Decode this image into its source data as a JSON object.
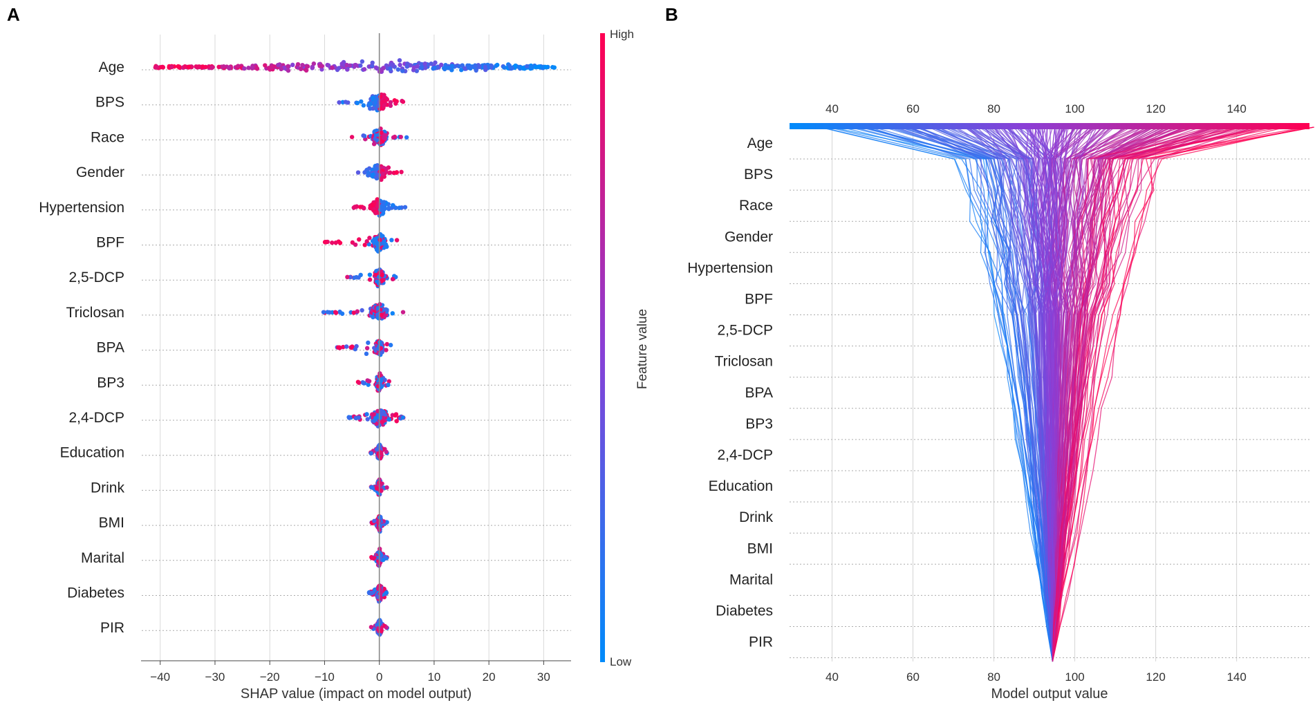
{
  "chart_data": [
    {
      "panel_label": "A",
      "type": "scatter",
      "subtype": "shap-beeswarm",
      "xlabel": "SHAP value (impact on model output)",
      "x_ticks": [
        "−40",
        "−30",
        "−20",
        "−10",
        "0",
        "10",
        "20",
        "30"
      ],
      "x_tick_values": [
        -40,
        -30,
        -20,
        -10,
        0,
        10,
        20,
        30
      ],
      "xlim": [
        -43.5,
        35
      ],
      "features": [
        "Age",
        "BPS",
        "Race",
        "Gender",
        "Hypertension",
        "BPF",
        "2,5-DCP",
        "Triclosan",
        "BPA",
        "BP3",
        "2,4-DCP",
        "Education",
        "Drink",
        "BMI",
        "Marital",
        "Diabetes",
        "PIR"
      ],
      "approx_shap_range": [
        [
          -41,
          32
        ],
        [
          -8.5,
          5
        ],
        [
          -5,
          5
        ],
        [
          -5,
          5
        ],
        [
          -5,
          5
        ],
        [
          -10,
          3.5
        ],
        [
          -6,
          3
        ],
        [
          -10.5,
          5
        ],
        [
          -8,
          2.5
        ],
        [
          -4,
          2
        ],
        [
          -6,
          5
        ],
        [
          -2,
          1.5
        ],
        [
          -1.5,
          1.5
        ],
        [
          -1.5,
          1.5
        ],
        [
          -1.5,
          1.5
        ],
        [
          -2,
          1.5
        ],
        [
          -1.5,
          1.5
        ]
      ],
      "colorbar": {
        "label": "Feature value",
        "high": "High",
        "low": "Low",
        "high_color": "#ff0052",
        "mid_color": "#8a3fd6",
        "low_color": "#008bfb"
      }
    },
    {
      "panel_label": "B",
      "type": "line",
      "subtype": "shap-decision-plot",
      "xlabel": "Model output value",
      "x_ticks": [
        "40",
        "60",
        "80",
        "100",
        "120",
        "140"
      ],
      "x_tick_values": [
        40,
        60,
        80,
        100,
        120,
        140
      ],
      "xlim": [
        29.5,
        158
      ],
      "features": [
        "Age",
        "BPS",
        "Race",
        "Gender",
        "Hypertension",
        "BPF",
        "2,5-DCP",
        "Triclosan",
        "BPA",
        "BP3",
        "2,4-DCP",
        "Education",
        "Drink",
        "BMI",
        "Marital",
        "Diabetes",
        "PIR"
      ],
      "base_value": 94.5,
      "approx_output_range": [
        29.5,
        158
      ]
    }
  ]
}
